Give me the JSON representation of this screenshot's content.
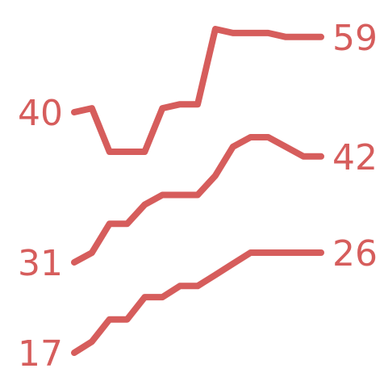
{
  "chart_data": {
    "type": "line",
    "title": "",
    "xlabel": "",
    "ylabel": "",
    "grid": false,
    "legend": "none",
    "color": "#d65d5c",
    "x": [
      0,
      1,
      2,
      3,
      4,
      5,
      6,
      7,
      8,
      9,
      10,
      11,
      12,
      13,
      14
    ],
    "series": [
      {
        "start_label": "40",
        "end_label": "59",
        "values": [
          40,
          41,
          30,
          30,
          30,
          41,
          42,
          42,
          61,
          60,
          60,
          60,
          59,
          59,
          59
        ]
      },
      {
        "start_label": "31",
        "end_label": "42",
        "values": [
          31,
          32,
          35,
          35,
          37,
          38,
          38,
          38,
          40,
          43,
          44,
          44,
          43,
          42,
          42
        ]
      },
      {
        "start_label": "17",
        "end_label": "26",
        "values": [
          17,
          18,
          20,
          20,
          22,
          22,
          23,
          23,
          24,
          25,
          26,
          26,
          26,
          26,
          26
        ]
      }
    ]
  }
}
